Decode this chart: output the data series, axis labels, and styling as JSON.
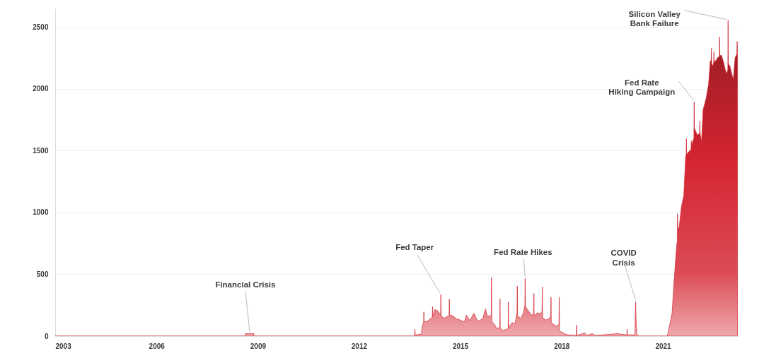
{
  "chart_data": {
    "type": "area",
    "color": "#d42531",
    "x": [
      "2003-01-01",
      "2008-08-18",
      "2008-08-19",
      "2008-11-20",
      "2008-11-21",
      "2013-08-25",
      "2013-08-28",
      "2013-09-01",
      "2013-11-05",
      "2013-11-16",
      "2013-11-30",
      "2013-12-03",
      "2013-12-06",
      "2014-01-10",
      "2014-02-10",
      "2014-03-04",
      "2014-03-07",
      "2014-03-10",
      "2014-04-01",
      "2014-05-01",
      "2014-06-02",
      "2014-06-05",
      "2014-06-08",
      "2014-07-10",
      "2014-09-02",
      "2014-09-05",
      "2014-09-08",
      "2014-10-10",
      "2014-11-20",
      "2015-01-01",
      "2015-02-15",
      "2015-03-08",
      "2015-04-15",
      "2015-05-28",
      "2015-07-10",
      "2015-09-01",
      "2015-10-02",
      "2015-10-20",
      "2015-11-25",
      "2015-12-02",
      "2015-12-05",
      "2015-12-08",
      "2016-01-10",
      "2016-02-01",
      "2016-03-03",
      "2016-03-06",
      "2016-03-09",
      "2016-04-10",
      "2016-06-02",
      "2016-06-05",
      "2016-06-08",
      "2016-07-15",
      "2016-08-15",
      "2016-09-06",
      "2016-09-09",
      "2016-09-12",
      "2016-10-15",
      "2016-11-15",
      "2016-11-30",
      "2016-12-03",
      "2016-12-06",
      "2017-01-10",
      "2017-02-10",
      "2017-03-05",
      "2017-03-08",
      "2017-03-11",
      "2017-04-15",
      "2017-05-15",
      "2017-06-04",
      "2017-06-07",
      "2017-06-10",
      "2017-07-15",
      "2017-08-15",
      "2017-09-06",
      "2017-09-09",
      "2017-09-12",
      "2017-10-15",
      "2017-11-15",
      "2017-12-04",
      "2017-12-07",
      "2017-12-10",
      "2018-01-10",
      "2018-02-10",
      "2018-03-15",
      "2018-06-09",
      "2018-06-12",
      "2018-06-15",
      "2018-09-10",
      "2018-10-01",
      "2018-12-01",
      "2019-01-01",
      "2019-09-01",
      "2019-10-15",
      "2019-12-08",
      "2019-12-11",
      "2019-12-14",
      "2020-03-05",
      "2020-03-10",
      "2020-03-13",
      "2020-03-16",
      "2020-03-25",
      "2020-04-15",
      "2021-02-18",
      "2021-03-16",
      "2021-04-11",
      "2021-05-01",
      "2021-05-19",
      "2021-06-01",
      "2021-06-06",
      "2021-06-09",
      "2021-06-12",
      "2021-06-26",
      "2021-07-21",
      "2021-08-16",
      "2021-09-05",
      "2021-09-10",
      "2021-09-13",
      "2021-09-16",
      "2021-10-19",
      "2021-11-02",
      "2021-11-05",
      "2021-11-08",
      "2021-11-26",
      "2021-12-03",
      "2021-12-06",
      "2021-12-09",
      "2022-01-10",
      "2022-02-02",
      "2022-02-05",
      "2022-02-08",
      "2022-02-23",
      "2022-03-13",
      "2022-04-15",
      "2022-05-11",
      "2022-05-29",
      "2022-06-08",
      "2022-06-11",
      "2022-06-14",
      "2022-06-24",
      "2022-07-05",
      "2022-07-08",
      "2022-07-11",
      "2022-07-26",
      "2022-08-17",
      "2022-09-04",
      "2022-09-07",
      "2022-09-10",
      "2022-09-28",
      "2022-10-23",
      "2022-11-18",
      "2022-12-05",
      "2022-12-08",
      "2022-12-11",
      "2022-12-26",
      "2023-01-20",
      "2023-02-02",
      "2023-02-22",
      "2023-03-13",
      "2023-03-16",
      "2023-03-20"
    ],
    "values": [
      0,
      0,
      20,
      20,
      0,
      0,
      56,
      10,
      15,
      80,
      110,
      195,
      115,
      120,
      140,
      150,
      240,
      160,
      215,
      205,
      170,
      335,
      165,
      145,
      165,
      300,
      170,
      165,
      140,
      130,
      115,
      170,
      125,
      185,
      120,
      140,
      220,
      160,
      165,
      170,
      475,
      120,
      90,
      60,
      70,
      300,
      60,
      45,
      60,
      275,
      70,
      110,
      100,
      190,
      405,
      170,
      140,
      190,
      250,
      467,
      240,
      200,
      170,
      180,
      345,
      160,
      190,
      180,
      200,
      398,
      150,
      130,
      140,
      160,
      315,
      110,
      90,
      80,
      100,
      315,
      40,
      30,
      15,
      10,
      5,
      90,
      5,
      25,
      5,
      20,
      5,
      20,
      15,
      10,
      57,
      10,
      10,
      180,
      277,
      150,
      15,
      0,
      0,
      90,
      185,
      427,
      614,
      747,
      760,
      989,
      870,
      876,
      1045,
      1140,
      1457,
      1460,
      1597,
      1470,
      1500,
      1510,
      1579,
      1540,
      1588,
      1600,
      1897,
      1680,
      1625,
      1640,
      1738,
      1640,
      1569,
      1831,
      1925,
      2037,
      2225,
      2230,
      2328,
      2200,
      2185,
      2210,
      2300,
      2220,
      2225,
      2253,
      2260,
      2421,
      2270,
      2270,
      2206,
      2122,
      2150,
      2555,
      2200,
      2187,
      2112,
      2075,
      2253,
      2280,
      2384,
      2270
    ],
    "xlim": [
      "2003-01-01",
      "2023-03-31"
    ],
    "xticks": [
      "2003",
      "2006",
      "2009",
      "2012",
      "2015",
      "2018",
      "2021"
    ],
    "ylim": [
      0,
      2650
    ],
    "yticks": [
      0,
      500,
      1000,
      1500,
      2000,
      2500
    ],
    "grid": "y",
    "annotations": [
      {
        "text": "Financial Crisis",
        "x": "2008-10-05",
        "y": 20
      },
      {
        "text": "Fed Taper",
        "x": "2014-06-05",
        "y": 335
      },
      {
        "text": "Fed Rate Hikes",
        "x": "2016-12-03",
        "y": 467
      },
      {
        "text": "COVID\nCrisis",
        "x": "2020-03-13",
        "y": 277
      },
      {
        "text": "Fed Rate\nHiking Campaign",
        "x": "2021-12-06",
        "y": 1897
      },
      {
        "text": "Silicon Valley\nBank Failure",
        "x": "2022-12-08",
        "y": 2555
      }
    ]
  }
}
